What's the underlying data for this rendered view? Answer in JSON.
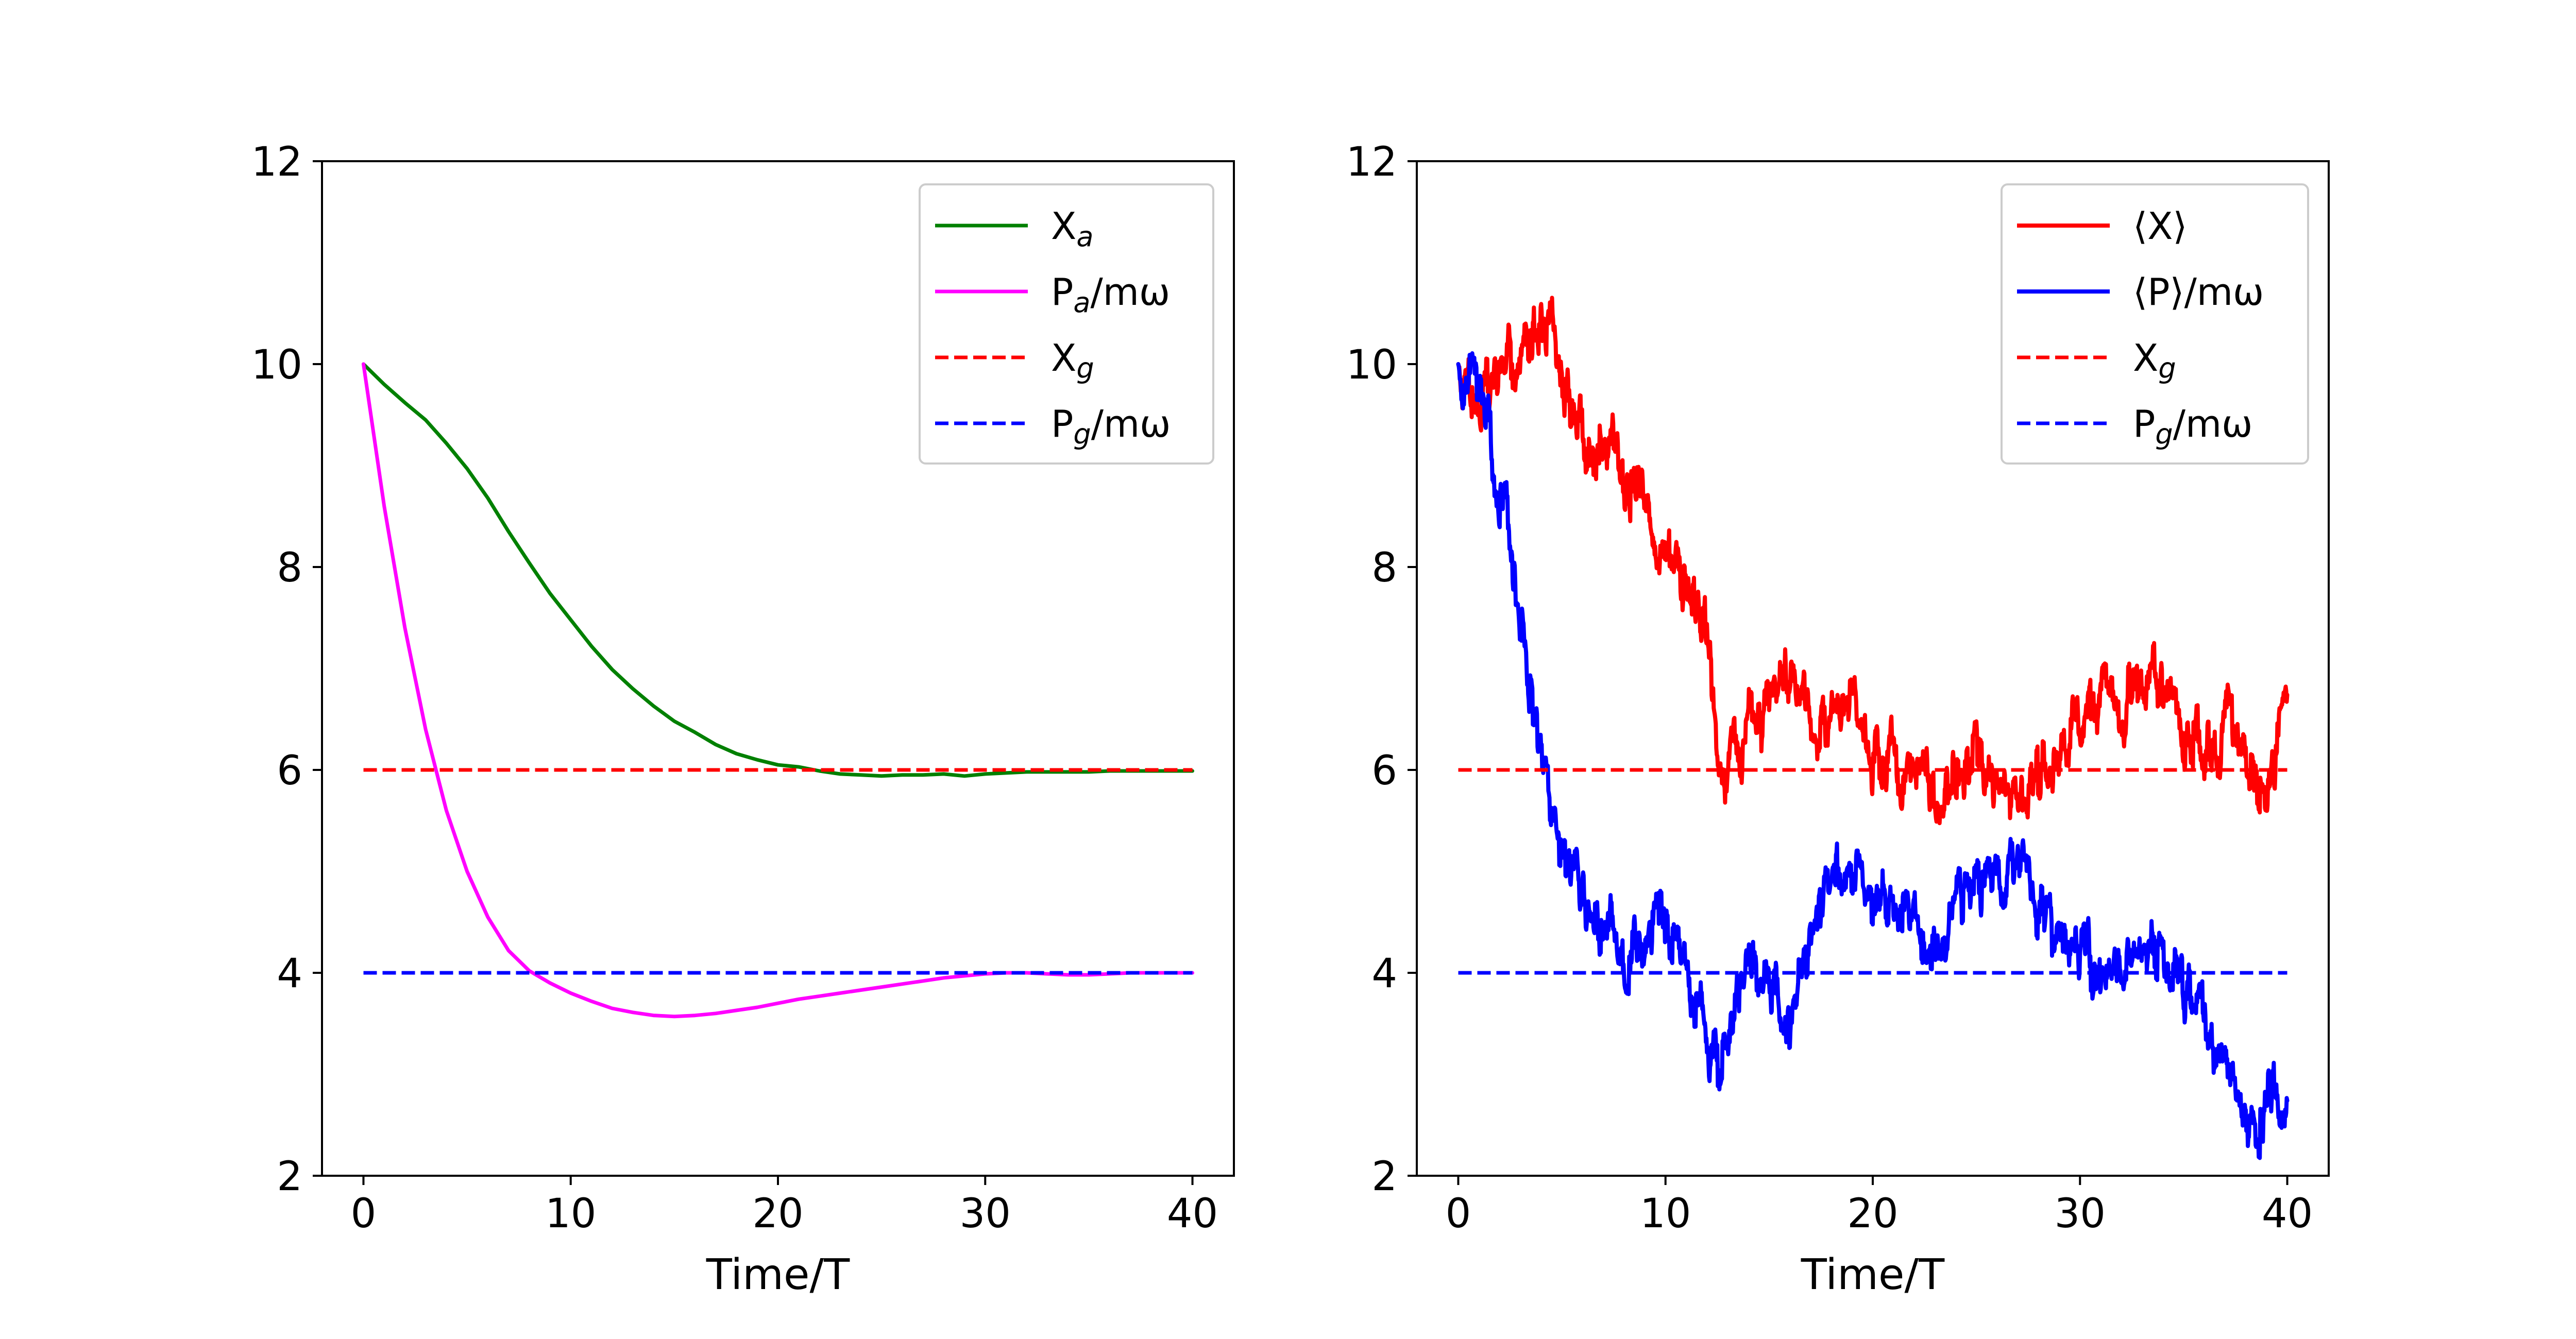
{
  "chart_data": [
    {
      "type": "line",
      "title": "",
      "xlabel": "Time/T",
      "ylabel": "",
      "xlim": [
        -2,
        42
      ],
      "ylim": [
        2,
        12
      ],
      "xticks": [
        0,
        10,
        20,
        30,
        40
      ],
      "yticks": [
        2,
        4,
        6,
        8,
        10,
        12
      ],
      "xtick_labels": [
        "0",
        "10",
        "20",
        "30",
        "40"
      ],
      "ytick_labels": [
        "2",
        "4",
        "6",
        "8",
        "10",
        "12"
      ],
      "legend_position": "top-right",
      "series": [
        {
          "name": "X_a",
          "label_main": "X",
          "label_sub": "a",
          "label_suffix": "",
          "color": "#008000",
          "style": "solid",
          "x": [
            0,
            1,
            2,
            3,
            4,
            5,
            6,
            7,
            8,
            9,
            10,
            11,
            12,
            13,
            14,
            15,
            16,
            17,
            18,
            19,
            20,
            21,
            22,
            23,
            24,
            25,
            26,
            27,
            28,
            29,
            30,
            31,
            32,
            33,
            34,
            35,
            36,
            37,
            38,
            39,
            40
          ],
          "y": [
            10.0,
            9.8,
            9.62,
            9.45,
            9.22,
            8.97,
            8.68,
            8.35,
            8.04,
            7.74,
            7.48,
            7.22,
            6.99,
            6.8,
            6.63,
            6.48,
            6.37,
            6.25,
            6.16,
            6.1,
            6.05,
            6.03,
            5.99,
            5.96,
            5.95,
            5.94,
            5.95,
            5.95,
            5.96,
            5.94,
            5.96,
            5.97,
            5.98,
            5.98,
            5.98,
            5.98,
            5.99,
            5.99,
            5.99,
            5.99,
            5.99
          ]
        },
        {
          "name": "P_a/mω",
          "label_main": "P",
          "label_sub": "a",
          "label_suffix": "/mω",
          "color": "#ff00ff",
          "style": "solid",
          "x": [
            0,
            1,
            2,
            3,
            4,
            5,
            6,
            7,
            8,
            9,
            10,
            11,
            12,
            13,
            14,
            15,
            16,
            17,
            18,
            19,
            20,
            21,
            22,
            23,
            24,
            25,
            26,
            27,
            28,
            29,
            30,
            31,
            32,
            33,
            34,
            35,
            36,
            37,
            38,
            39,
            40
          ],
          "y": [
            10.0,
            8.6,
            7.4,
            6.4,
            5.6,
            5.0,
            4.55,
            4.22,
            4.02,
            3.9,
            3.8,
            3.72,
            3.65,
            3.61,
            3.58,
            3.57,
            3.58,
            3.6,
            3.63,
            3.66,
            3.7,
            3.74,
            3.77,
            3.8,
            3.83,
            3.86,
            3.89,
            3.92,
            3.95,
            3.97,
            3.99,
            4.0,
            4.0,
            3.99,
            3.98,
            3.98,
            3.99,
            4.0,
            4.0,
            4.0,
            4.0
          ]
        },
        {
          "name": "X_g",
          "label_main": "X",
          "label_sub": "g",
          "label_suffix": "",
          "color": "#ff0000",
          "style": "dashed",
          "x": [
            0,
            40
          ],
          "y": [
            6,
            6
          ]
        },
        {
          "name": "P_g/mω",
          "label_main": "P",
          "label_sub": "g",
          "label_suffix": "/mω",
          "color": "#0000ff",
          "style": "dashed",
          "x": [
            0,
            40
          ],
          "y": [
            4,
            4
          ]
        }
      ]
    },
    {
      "type": "line",
      "title": "",
      "xlabel": "Time/T",
      "ylabel": "",
      "xlim": [
        -2,
        42
      ],
      "ylim": [
        2,
        12
      ],
      "xticks": [
        0,
        10,
        20,
        30,
        40
      ],
      "yticks": [
        2,
        4,
        6,
        8,
        10,
        12
      ],
      "xtick_labels": [
        "0",
        "10",
        "20",
        "30",
        "40"
      ],
      "ytick_labels": [
        "2",
        "4",
        "6",
        "8",
        "10",
        "12"
      ],
      "legend_position": "top-right",
      "series": [
        {
          "name": "⟨X⟩",
          "label_main": "⟨X⟩",
          "label_sub": "",
          "label_suffix": "",
          "color": "#ff0000",
          "style": "solid",
          "noise": 0.2,
          "seed": 7,
          "x": [
            0,
            1,
            2,
            3,
            3.5,
            4,
            4.5,
            5,
            6,
            7,
            8,
            9,
            10,
            11,
            12,
            12.5,
            13,
            14,
            15,
            16,
            17,
            18,
            19,
            20,
            21,
            22,
            23,
            24,
            25,
            26,
            27,
            28,
            29,
            30,
            31,
            32,
            33,
            34,
            35,
            36,
            37,
            38,
            39,
            39.5,
            40
          ],
          "y": [
            10.0,
            9.7,
            9.9,
            10.1,
            10.4,
            10.6,
            10.2,
            9.7,
            9.4,
            9.2,
            9.0,
            8.5,
            8.1,
            7.8,
            7.4,
            6.3,
            6.0,
            6.4,
            6.6,
            7.0,
            6.6,
            6.5,
            6.7,
            6.2,
            6.1,
            6.0,
            5.8,
            5.9,
            6.1,
            5.8,
            5.6,
            5.9,
            6.3,
            6.4,
            6.8,
            6.6,
            7.0,
            6.8,
            6.4,
            6.2,
            6.5,
            6.0,
            5.8,
            6.3,
            6.5
          ]
        },
        {
          "name": "⟨P⟩/mω",
          "label_main": "⟨P⟩",
          "label_sub": "",
          "label_suffix": "/mω",
          "color": "#0000ff",
          "style": "solid",
          "noise": 0.2,
          "seed": 13,
          "x": [
            0,
            0.5,
            1,
            2,
            3,
            3.5,
            4,
            4.5,
            5,
            6,
            7,
            8,
            9,
            10,
            11,
            12,
            12.5,
            13,
            14,
            15,
            16,
            17,
            18,
            19,
            20,
            21,
            22,
            23,
            24,
            25,
            26,
            27,
            28,
            29,
            30,
            31,
            32,
            33,
            34,
            35,
            36,
            37,
            38,
            39,
            39.5,
            40
          ],
          "y": [
            10.0,
            9.8,
            9.6,
            8.8,
            7.5,
            6.8,
            6.0,
            5.5,
            5.1,
            4.7,
            4.3,
            4.2,
            4.3,
            4.6,
            4.0,
            3.4,
            3.0,
            3.4,
            4.0,
            4.1,
            3.5,
            4.2,
            5.0,
            5.1,
            4.7,
            4.6,
            4.6,
            4.4,
            4.7,
            4.8,
            4.9,
            5.2,
            4.5,
            4.3,
            4.1,
            4.0,
            4.2,
            4.3,
            4.2,
            3.7,
            3.4,
            3.1,
            2.4,
            2.7,
            3.1,
            2.4
          ]
        },
        {
          "name": "X_g",
          "label_main": "X",
          "label_sub": "g",
          "label_suffix": "",
          "color": "#ff0000",
          "style": "dashed",
          "x": [
            0,
            40
          ],
          "y": [
            6,
            6
          ]
        },
        {
          "name": "P_g/mω",
          "label_main": "P",
          "label_sub": "g",
          "label_suffix": "/mω",
          "color": "#0000ff",
          "style": "dashed",
          "x": [
            0,
            40
          ],
          "y": [
            4,
            4
          ]
        }
      ]
    }
  ]
}
